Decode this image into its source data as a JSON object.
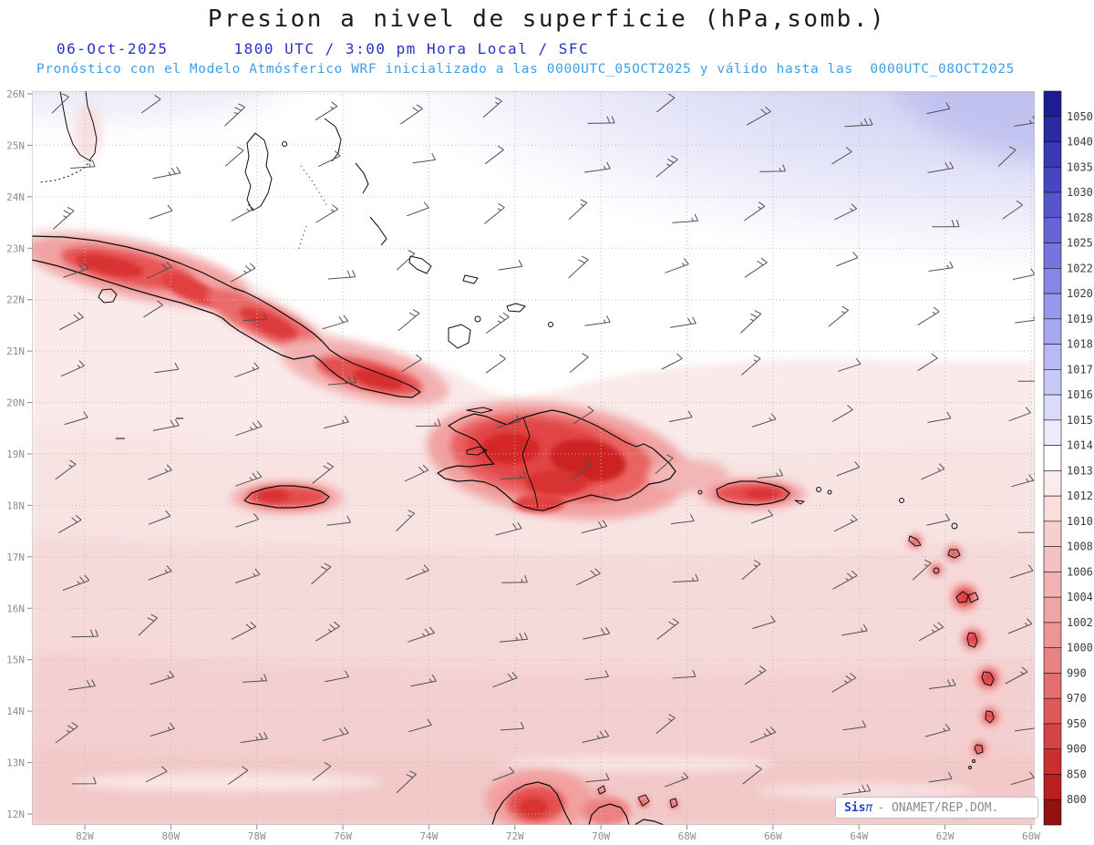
{
  "header": {
    "title": "Presion a nivel de superficie (hPa,somb.)",
    "date": "06-Oct-2025",
    "time_line": "1800 UTC / 3:00 pm Hora Local / SFC",
    "forecast_line": "Pronóstico con el Modelo Atmósferico WRF inicializado a las 0000UTC_05OCT2025 y válido hasta las  0000UTC_08OCT2025"
  },
  "map": {
    "lat_labels": [
      "26N",
      "25N",
      "24N",
      "23N",
      "22N",
      "21N",
      "20N",
      "19N",
      "18N",
      "17N",
      "16N",
      "15N",
      "14N",
      "13N",
      "12N"
    ],
    "lon_labels": [
      "82W",
      "80W",
      "78W",
      "76W",
      "74W",
      "72W",
      "70W",
      "68W",
      "66W",
      "64W",
      "62W",
      "60W"
    ]
  },
  "colorbar": {
    "unit": "hPa",
    "values": [
      "1050",
      "1040",
      "1035",
      "1030",
      "1028",
      "1025",
      "1022",
      "1020",
      "1019",
      "1018",
      "1017",
      "1016",
      "1015",
      "1014",
      "1013",
      "1012",
      "1010",
      "1008",
      "1006",
      "1004",
      "1002",
      "1000",
      "990",
      "970",
      "950",
      "900",
      "850",
      "800"
    ],
    "colors": [
      "#1d1d92",
      "#2a2aa2",
      "#3838b2",
      "#4646c0",
      "#5555cc",
      "#6565d6",
      "#7575de",
      "#8686e6",
      "#9797ec",
      "#a8a8f1",
      "#b9b9f5",
      "#c9c9f8",
      "#dadafa",
      "#ececfd",
      "#ffffff",
      "#fcebeb",
      "#fadddd",
      "#f8cfcf",
      "#f5c1c1",
      "#f2b3b3",
      "#efa5a5",
      "#ec9595",
      "#e88383",
      "#e36f6f",
      "#dd5a5a",
      "#d54444",
      "#ca3030",
      "#bb1e1e",
      "#941111"
    ]
  },
  "branding": {
    "app": "Sis",
    "pi": "π",
    "credit": "- ONAMET/REP.DOM.",
    "brand_blue": "#2244cc"
  },
  "chart_data": {
    "type": "heatmap",
    "variable": "Presion a nivel de superficie (hPa, sombreado)",
    "region": {
      "lat_range": [
        "12N",
        "26N"
      ],
      "lon_range": [
        "60W",
        "~83W"
      ]
    },
    "levels_hpa": [
      800,
      850,
      900,
      950,
      970,
      990,
      1000,
      1002,
      1004,
      1006,
      1008,
      1010,
      1012,
      1013,
      1014,
      1015,
      1016,
      1017,
      1018,
      1019,
      1020,
      1022,
      1025,
      1028,
      1030,
      1035,
      1040,
      1050
    ],
    "visible_features": [
      "Blue shading (about 1015-1019 hPa) over the Atlantic in the northeast corner",
      "White band (1013-1014 hPa) across the Bahamas and central part of the domain",
      "Light pink shading (about 1010-1012 hPa) over the Caribbean Sea south of ~21N, deepening southward",
      "Red pressure minima over western/central/eastern Cuba, Jamaica, Hispaniola (strongest), Puerto Rico, the Lesser Antilles and the north coast of South America",
      "Wind barbs showing prevailing easterly trade winds across the whole domain"
    ]
  }
}
